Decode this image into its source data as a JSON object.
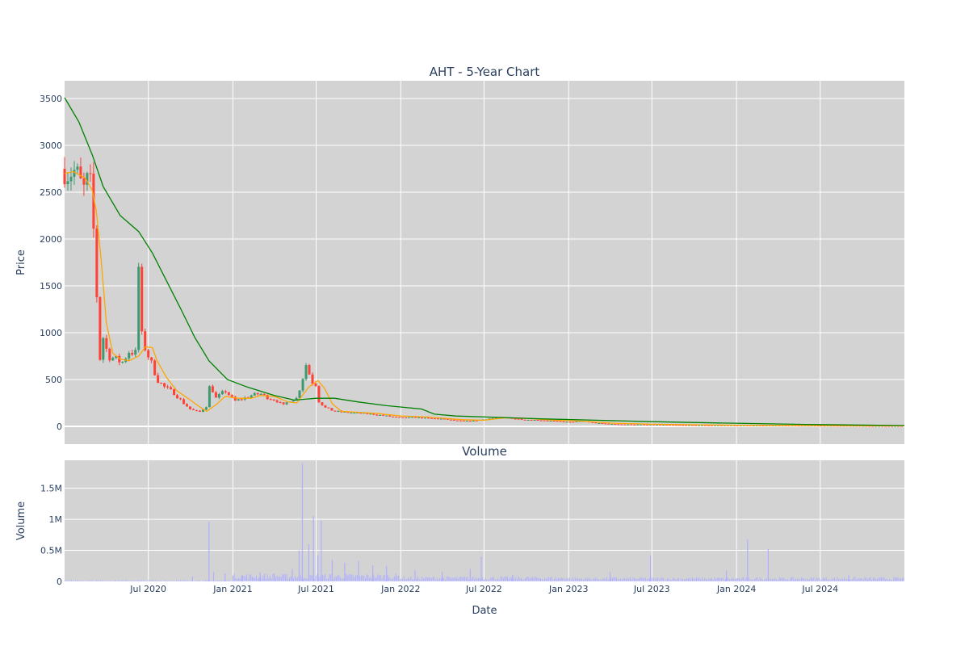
{
  "chart_data": [
    {
      "type": "candlestick",
      "title": "AHT - 5-Year Chart",
      "ylabel": "Price",
      "xlim": [
        "2020-01-01",
        "2024-12-31"
      ],
      "ylim": [
        -190,
        3690
      ],
      "yticks": [
        0,
        500,
        1000,
        1500,
        2000,
        2500,
        3000,
        3500
      ],
      "grid": true,
      "colors": {
        "increasing": "#3d9970",
        "decreasing": "#ff4136",
        "ma_short": "#ffa500",
        "ma_long": "#008000",
        "background": "#d3d3d3"
      },
      "price_path": [
        [
          "2020-01-01",
          2750
        ],
        [
          "2020-01-10",
          2700
        ],
        [
          "2020-01-20",
          2740
        ],
        [
          "2020-02-01",
          2650
        ],
        [
          "2020-02-10",
          2500
        ],
        [
          "2020-02-20",
          2620
        ],
        [
          "2020-02-28",
          2550
        ],
        [
          "2020-03-05",
          2000
        ],
        [
          "2020-03-12",
          1300
        ],
        [
          "2020-03-16",
          850
        ],
        [
          "2020-03-20",
          600
        ],
        [
          "2020-03-25",
          950
        ],
        [
          "2020-04-05",
          750
        ],
        [
          "2020-04-20",
          720
        ],
        [
          "2020-05-05",
          680
        ],
        [
          "2020-05-20",
          800
        ],
        [
          "2020-06-05",
          780
        ],
        [
          "2020-06-10",
          1700
        ],
        [
          "2020-06-15",
          1000
        ],
        [
          "2020-06-25",
          820
        ],
        [
          "2020-07-10",
          650
        ],
        [
          "2020-07-20",
          500
        ],
        [
          "2020-08-05",
          420
        ],
        [
          "2020-08-25",
          360
        ],
        [
          "2020-09-15",
          250
        ],
        [
          "2020-10-01",
          180
        ],
        [
          "2020-10-20",
          150
        ],
        [
          "2020-11-05",
          220
        ],
        [
          "2020-11-12",
          450
        ],
        [
          "2020-11-25",
          300
        ],
        [
          "2020-12-15",
          380
        ],
        [
          "2021-01-05",
          270
        ],
        [
          "2021-01-25",
          300
        ],
        [
          "2021-02-10",
          330
        ],
        [
          "2021-03-01",
          350
        ],
        [
          "2021-03-20",
          300
        ],
        [
          "2021-04-05",
          280
        ],
        [
          "2021-04-20",
          220
        ],
        [
          "2021-05-05",
          280
        ],
        [
          "2021-05-20",
          300
        ],
        [
          "2021-06-01",
          500
        ],
        [
          "2021-06-10",
          680
        ],
        [
          "2021-06-20",
          480
        ],
        [
          "2021-06-30",
          450
        ],
        [
          "2021-07-05",
          280
        ],
        [
          "2021-07-20",
          200
        ],
        [
          "2021-08-10",
          160
        ],
        [
          "2021-09-01",
          150
        ],
        [
          "2021-10-01",
          140
        ],
        [
          "2021-11-01",
          130
        ],
        [
          "2021-12-01",
          110
        ],
        [
          "2022-01-01",
          90
        ],
        [
          "2022-02-01",
          95
        ],
        [
          "2022-03-01",
          85
        ],
        [
          "2022-04-01",
          80
        ],
        [
          "2022-05-01",
          60
        ],
        [
          "2022-06-01",
          55
        ],
        [
          "2022-07-01",
          75
        ],
        [
          "2022-08-01",
          95
        ],
        [
          "2022-09-01",
          85
        ],
        [
          "2022-10-01",
          70
        ],
        [
          "2022-11-01",
          65
        ],
        [
          "2022-12-01",
          55
        ],
        [
          "2023-01-01",
          45
        ],
        [
          "2023-02-01",
          55
        ],
        [
          "2023-03-01",
          35
        ],
        [
          "2023-04-01",
          25
        ],
        [
          "2023-05-01",
          20
        ],
        [
          "2023-07-01",
          18
        ],
        [
          "2023-10-01",
          12
        ],
        [
          "2024-01-01",
          10
        ],
        [
          "2024-04-01",
          8
        ],
        [
          "2024-07-01",
          7
        ],
        [
          "2024-10-01",
          5
        ],
        [
          "2024-12-31",
          4
        ]
      ],
      "ma_short_path": [
        [
          "2020-01-01",
          2700
        ],
        [
          "2020-01-20",
          2720
        ],
        [
          "2020-02-15",
          2650
        ],
        [
          "2020-03-01",
          2520
        ],
        [
          "2020-03-10",
          2300
        ],
        [
          "2020-03-20",
          1800
        ],
        [
          "2020-04-01",
          1100
        ],
        [
          "2020-04-15",
          780
        ],
        [
          "2020-05-01",
          720
        ],
        [
          "2020-05-20",
          700
        ],
        [
          "2020-06-10",
          750
        ],
        [
          "2020-06-25",
          850
        ],
        [
          "2020-07-10",
          840
        ],
        [
          "2020-07-20",
          700
        ],
        [
          "2020-08-10",
          520
        ],
        [
          "2020-09-01",
          380
        ],
        [
          "2020-09-25",
          300
        ],
        [
          "2020-10-20",
          210
        ],
        [
          "2020-11-05",
          160
        ],
        [
          "2020-11-25",
          230
        ],
        [
          "2020-12-15",
          320
        ],
        [
          "2021-01-10",
          300
        ],
        [
          "2021-02-10",
          300
        ],
        [
          "2021-03-01",
          330
        ],
        [
          "2021-04-01",
          320
        ],
        [
          "2021-05-01",
          260
        ],
        [
          "2021-05-20",
          250
        ],
        [
          "2021-06-15",
          420
        ],
        [
          "2021-07-05",
          490
        ],
        [
          "2021-07-20",
          400
        ],
        [
          "2021-08-05",
          240
        ],
        [
          "2021-08-25",
          160
        ],
        [
          "2021-10-01",
          150
        ],
        [
          "2021-11-15",
          135
        ],
        [
          "2022-01-01",
          110
        ],
        [
          "2022-03-01",
          100
        ],
        [
          "2022-05-15",
          70
        ],
        [
          "2022-07-01",
          65
        ],
        [
          "2022-08-15",
          90
        ],
        [
          "2022-10-01",
          85
        ],
        [
          "2022-12-01",
          65
        ],
        [
          "2023-02-01",
          55
        ],
        [
          "2023-04-01",
          35
        ],
        [
          "2023-07-01",
          22
        ],
        [
          "2024-01-01",
          12
        ],
        [
          "2024-07-01",
          8
        ],
        [
          "2024-12-31",
          5
        ]
      ],
      "ma_long_path": [
        [
          "2020-01-01",
          3510
        ],
        [
          "2020-02-01",
          3250
        ],
        [
          "2020-03-01",
          2900
        ],
        [
          "2020-03-25",
          2560
        ],
        [
          "2020-05-01",
          2250
        ],
        [
          "2020-06-10",
          2080
        ],
        [
          "2020-07-10",
          1850
        ],
        [
          "2020-08-10",
          1550
        ],
        [
          "2020-09-10",
          1250
        ],
        [
          "2020-10-10",
          950
        ],
        [
          "2020-11-10",
          700
        ],
        [
          "2020-12-20",
          500
        ],
        [
          "2021-02-01",
          420
        ],
        [
          "2021-04-01",
          330
        ],
        [
          "2021-05-15",
          280
        ],
        [
          "2021-07-01",
          300
        ],
        [
          "2021-08-10",
          300
        ],
        [
          "2021-10-01",
          260
        ],
        [
          "2021-12-01",
          220
        ],
        [
          "2022-02-15",
          185
        ],
        [
          "2022-03-15",
          130
        ],
        [
          "2022-05-01",
          110
        ],
        [
          "2022-08-01",
          95
        ],
        [
          "2022-11-01",
          80
        ],
        [
          "2023-03-01",
          65
        ],
        [
          "2023-07-01",
          50
        ],
        [
          "2023-12-01",
          35
        ],
        [
          "2024-06-01",
          20
        ],
        [
          "2024-12-31",
          8
        ]
      ]
    },
    {
      "type": "bar",
      "title": "Volume",
      "xlabel": "Date",
      "ylabel": "Volume",
      "ylim": [
        0,
        1950000
      ],
      "yticks": [
        0,
        500000,
        1000000,
        1500000
      ],
      "ytick_labels": [
        "0",
        "0.5M",
        "1M",
        "1.5M"
      ],
      "xticks": [
        "2020-07-01",
        "2021-01-01",
        "2021-07-01",
        "2022-01-01",
        "2022-07-01",
        "2023-01-01",
        "2023-07-01",
        "2024-01-01",
        "2024-07-01"
      ],
      "xtick_labels": [
        "Jul 2020",
        "Jan 2021",
        "Jul 2021",
        "Jan 2022",
        "Jul 2022",
        "Jan 2023",
        "Jul 2023",
        "Jan 2024",
        "Jul 2024"
      ],
      "color": "#b0b0ff",
      "spikes": [
        [
          "2020-10-05",
          80000
        ],
        [
          "2020-11-10",
          960000
        ],
        [
          "2020-11-20",
          150000
        ],
        [
          "2020-12-15",
          130000
        ],
        [
          "2021-01-20",
          100000
        ],
        [
          "2021-03-01",
          150000
        ],
        [
          "2021-04-01",
          130000
        ],
        [
          "2021-05-10",
          200000
        ],
        [
          "2021-05-25",
          500000
        ],
        [
          "2021-06-01",
          1900000
        ],
        [
          "2021-06-15",
          600000
        ],
        [
          "2021-06-25",
          1050000
        ],
        [
          "2021-07-05",
          420000
        ],
        [
          "2021-07-12",
          980000
        ],
        [
          "2021-08-05",
          350000
        ],
        [
          "2021-09-01",
          300000
        ],
        [
          "2021-10-01",
          330000
        ],
        [
          "2021-11-01",
          260000
        ],
        [
          "2021-12-01",
          250000
        ],
        [
          "2022-02-01",
          180000
        ],
        [
          "2022-04-01",
          150000
        ],
        [
          "2022-06-01",
          200000
        ],
        [
          "2022-06-25",
          400000
        ],
        [
          "2022-09-01",
          110000
        ],
        [
          "2023-04-01",
          150000
        ],
        [
          "2023-06-28",
          420000
        ],
        [
          "2023-12-10",
          170000
        ],
        [
          "2024-01-25",
          680000
        ],
        [
          "2024-03-10",
          520000
        ],
        [
          "2024-09-01",
          100000
        ]
      ]
    }
  ]
}
